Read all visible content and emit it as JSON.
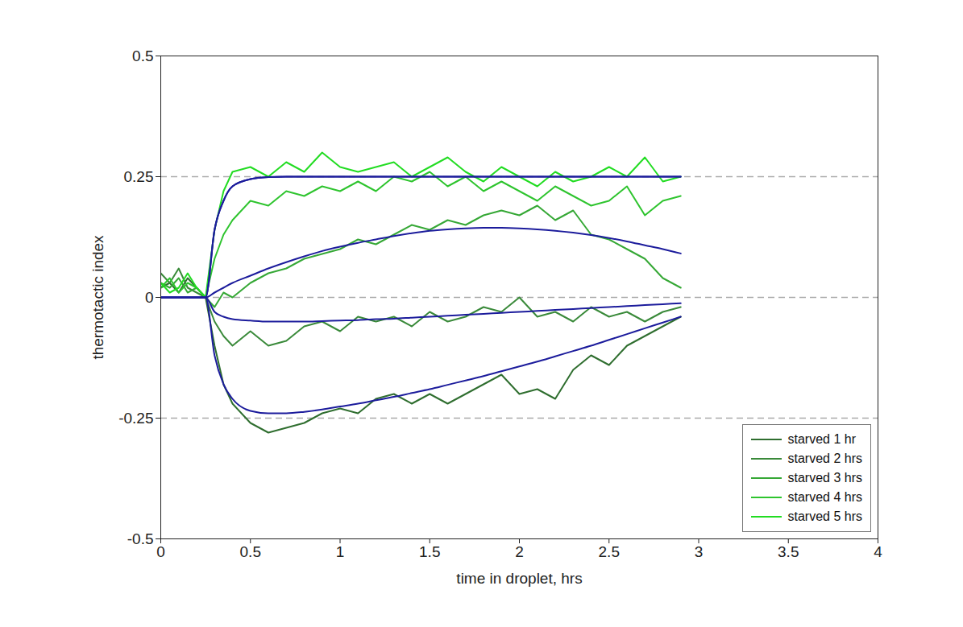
{
  "chart_data": {
    "type": "line",
    "x_label": "time in droplet, hrs",
    "y_label": "thermotactic index",
    "xlim": [
      0,
      4
    ],
    "xticks": [
      0,
      0.5,
      1,
      1.5,
      2,
      2.5,
      3,
      3.5,
      4
    ],
    "ylim": [
      -0.5,
      0.5
    ],
    "yticks": [
      -0.5,
      -0.25,
      0,
      0.25,
      0.5
    ],
    "reference_lines": [
      0.25,
      0,
      -0.25
    ],
    "grid": false,
    "legend": "lower right",
    "color": "#1c1c9c",
    "x": [
      0,
      0.05,
      0.1,
      0.15,
      0.2,
      0.25,
      0.3,
      0.35,
      0.4,
      0.5,
      0.6,
      0.7,
      0.8,
      0.9,
      1.0,
      1.1,
      1.2,
      1.3,
      1.4,
      1.5,
      1.6,
      1.7,
      1.8,
      1.9,
      2.0,
      2.1,
      2.2,
      2.3,
      2.4,
      2.5,
      2.6,
      2.7,
      2.8,
      2.9
    ],
    "series": [
      {
        "name": "starved 1 hr",
        "color": "#2f6e2f",
        "values": [
          0.02,
          0.03,
          0.01,
          0.04,
          0.02,
          0,
          -0.1,
          -0.18,
          -0.22,
          -0.26,
          -0.28,
          -0.27,
          -0.26,
          -0.24,
          -0.23,
          -0.24,
          -0.21,
          -0.2,
          -0.22,
          -0.2,
          -0.22,
          -0.2,
          -0.18,
          -0.16,
          -0.2,
          -0.19,
          -0.21,
          -0.15,
          -0.12,
          -0.14,
          -0.1,
          -0.08,
          -0.06,
          -0.04
        ],
        "fit": [
          0,
          0,
          0,
          0,
          0,
          0,
          -0.12,
          -0.18,
          -0.21,
          -0.235,
          -0.24,
          -0.24,
          -0.237,
          -0.232,
          -0.226,
          -0.22,
          -0.213,
          -0.206,
          -0.198,
          -0.19,
          -0.181,
          -0.172,
          -0.163,
          -0.153,
          -0.143,
          -0.133,
          -0.122,
          -0.111,
          -0.1,
          -0.088,
          -0.076,
          -0.064,
          -0.052,
          -0.04
        ]
      },
      {
        "name": "starved 2 hrs",
        "color": "#3a8a3a",
        "values": [
          0.05,
          0.03,
          0.06,
          0.02,
          0.01,
          0,
          -0.05,
          -0.08,
          -0.1,
          -0.07,
          -0.1,
          -0.09,
          -0.06,
          -0.05,
          -0.07,
          -0.04,
          -0.05,
          -0.04,
          -0.06,
          -0.03,
          -0.05,
          -0.04,
          -0.02,
          -0.03,
          0,
          -0.04,
          -0.03,
          -0.05,
          -0.02,
          -0.04,
          -0.03,
          -0.05,
          -0.03,
          -0.02
        ],
        "fit": [
          0,
          0,
          0,
          0,
          0,
          0,
          -0.03,
          -0.04,
          -0.045,
          -0.048,
          -0.05,
          -0.05,
          -0.05,
          -0.049,
          -0.048,
          -0.047,
          -0.045,
          -0.044,
          -0.042,
          -0.04,
          -0.038,
          -0.036,
          -0.034,
          -0.032,
          -0.03,
          -0.028,
          -0.026,
          -0.024,
          -0.022,
          -0.02,
          -0.018,
          -0.016,
          -0.014,
          -0.012
        ]
      },
      {
        "name": "starved 3 hrs",
        "color": "#36a836",
        "values": [
          0.03,
          0.02,
          0.04,
          0.01,
          0.02,
          0,
          -0.02,
          0.01,
          0,
          0.03,
          0.05,
          0.06,
          0.08,
          0.09,
          0.1,
          0.12,
          0.11,
          0.13,
          0.15,
          0.14,
          0.16,
          0.15,
          0.17,
          0.18,
          0.17,
          0.19,
          0.16,
          0.18,
          0.13,
          0.12,
          0.1,
          0.08,
          0.04,
          0.02
        ],
        "fit": [
          0,
          0,
          0,
          0,
          0,
          0,
          0.01,
          0.02,
          0.03,
          0.045,
          0.06,
          0.073,
          0.085,
          0.096,
          0.105,
          0.113,
          0.12,
          0.127,
          0.133,
          0.138,
          0.141,
          0.143,
          0.144,
          0.144,
          0.143,
          0.141,
          0.138,
          0.134,
          0.129,
          0.123,
          0.116,
          0.108,
          0.1,
          0.091
        ]
      },
      {
        "name": "starved 4 hrs",
        "color": "#2ec42e",
        "values": [
          0.02,
          0.04,
          0.01,
          0.03,
          0.02,
          0,
          0.08,
          0.13,
          0.16,
          0.2,
          0.19,
          0.22,
          0.21,
          0.23,
          0.22,
          0.24,
          0.22,
          0.25,
          0.24,
          0.26,
          0.23,
          0.25,
          0.22,
          0.24,
          0.22,
          0.2,
          0.23,
          0.21,
          0.19,
          0.2,
          0.23,
          0.17,
          0.2,
          0.21
        ],
        "fit": [
          0,
          0,
          0,
          0,
          0,
          0,
          0.14,
          0.2,
          0.23,
          0.245,
          0.249,
          0.25,
          0.25,
          0.25,
          0.25,
          0.25,
          0.25,
          0.25,
          0.25,
          0.25,
          0.25,
          0.25,
          0.25,
          0.25,
          0.25,
          0.25,
          0.25,
          0.25,
          0.25,
          0.25,
          0.25,
          0.25,
          0.25,
          0.25
        ]
      },
      {
        "name": "starved 5 hrs",
        "color": "#22dc22",
        "values": [
          0.03,
          0.01,
          0.02,
          0.05,
          0.02,
          0,
          0.14,
          0.22,
          0.26,
          0.27,
          0.25,
          0.28,
          0.26,
          0.3,
          0.27,
          0.26,
          0.27,
          0.28,
          0.25,
          0.27,
          0.29,
          0.26,
          0.24,
          0.27,
          0.25,
          0.23,
          0.26,
          0.24,
          0.25,
          0.27,
          0.25,
          0.29,
          0.24,
          0.25
        ],
        "fit": [
          0,
          0,
          0,
          0,
          0,
          0,
          0.14,
          0.2,
          0.23,
          0.245,
          0.249,
          0.25,
          0.25,
          0.25,
          0.25,
          0.25,
          0.25,
          0.25,
          0.25,
          0.25,
          0.25,
          0.25,
          0.25,
          0.25,
          0.25,
          0.25,
          0.25,
          0.25,
          0.25,
          0.25,
          0.25,
          0.25,
          0.25,
          0.25
        ]
      }
    ]
  }
}
